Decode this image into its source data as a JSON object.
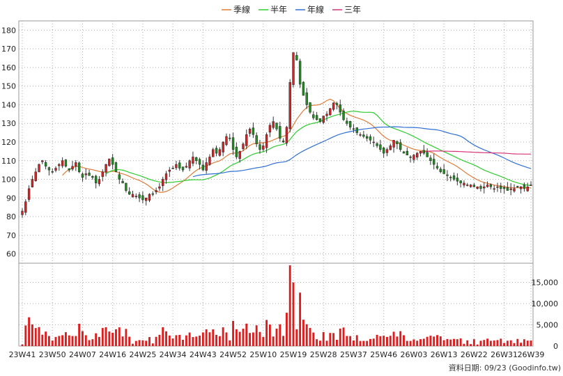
{
  "chart_data": {
    "type": "candlestick",
    "legend": [
      {
        "label": "季線",
        "color": "#e07b39"
      },
      {
        "label": "半年",
        "color": "#2ecc2e"
      },
      {
        "label": "年線",
        "color": "#2f6fd6"
      },
      {
        "label": "三年",
        "color": "#d6337a"
      }
    ],
    "colors": {
      "up": "#d62222",
      "down": "#1f8f1f",
      "wick": "#333333",
      "volume": "#e01b1b"
    },
    "x_labels": [
      "23W41",
      "23W50",
      "24W07",
      "24W16",
      "24W25",
      "24W34",
      "24W43",
      "24W52",
      "25W10",
      "25W19",
      "25W28",
      "25W37",
      "25W46",
      "26W03",
      "26W13",
      "26W22",
      "26W31",
      "26W39"
    ],
    "x_label_index": [
      0,
      9,
      18,
      27,
      36,
      45,
      54,
      63,
      72,
      81,
      90,
      99,
      108,
      117,
      126,
      135,
      144,
      152
    ],
    "price_axis": {
      "ylim": [
        55,
        185
      ],
      "ticks": [
        60,
        70,
        80,
        90,
        100,
        110,
        120,
        130,
        140,
        150,
        160,
        170,
        180
      ]
    },
    "volume_axis": {
      "ylim": [
        0,
        19500
      ],
      "ticks": [
        0,
        5000,
        10000,
        15000
      ],
      "tick_labels": [
        "0",
        "5,000",
        "10,000",
        "15,000"
      ]
    },
    "grid": true,
    "legend_position": "top-center",
    "credit": "資料日期: 09/23  (Goodinfo.tw)",
    "closes": [
      83,
      88,
      95,
      100,
      104,
      108,
      110,
      107,
      105,
      104,
      106,
      108,
      110,
      107,
      105,
      107,
      109,
      104,
      101,
      103,
      102,
      101,
      98,
      100,
      104,
      108,
      111,
      108,
      104,
      100,
      98,
      94,
      92,
      92,
      91,
      90,
      89,
      90,
      92,
      92,
      94,
      96,
      100,
      103,
      105,
      106,
      108,
      106,
      105,
      107,
      110,
      112,
      110,
      108,
      105,
      109,
      112,
      116,
      114,
      116,
      120,
      123,
      122,
      116,
      112,
      115,
      119,
      124,
      127,
      124,
      119,
      116,
      118,
      124,
      129,
      131,
      127,
      122,
      120,
      128,
      152,
      168,
      164,
      151,
      145,
      140,
      136,
      133,
      132,
      131,
      134,
      135,
      138,
      141,
      140,
      136,
      132,
      130,
      128,
      127,
      125,
      124,
      123,
      122,
      121,
      120,
      118,
      116,
      114,
      116,
      118,
      121,
      119,
      116,
      114,
      113,
      112,
      113,
      114,
      115,
      114,
      112,
      110,
      108,
      106,
      104,
      103,
      102,
      101,
      100,
      99,
      98,
      98,
      97,
      97,
      96,
      96,
      95,
      96,
      97,
      96,
      95,
      96,
      95,
      95,
      94,
      95,
      95,
      96,
      96,
      95,
      96,
      97
    ]
  }
}
